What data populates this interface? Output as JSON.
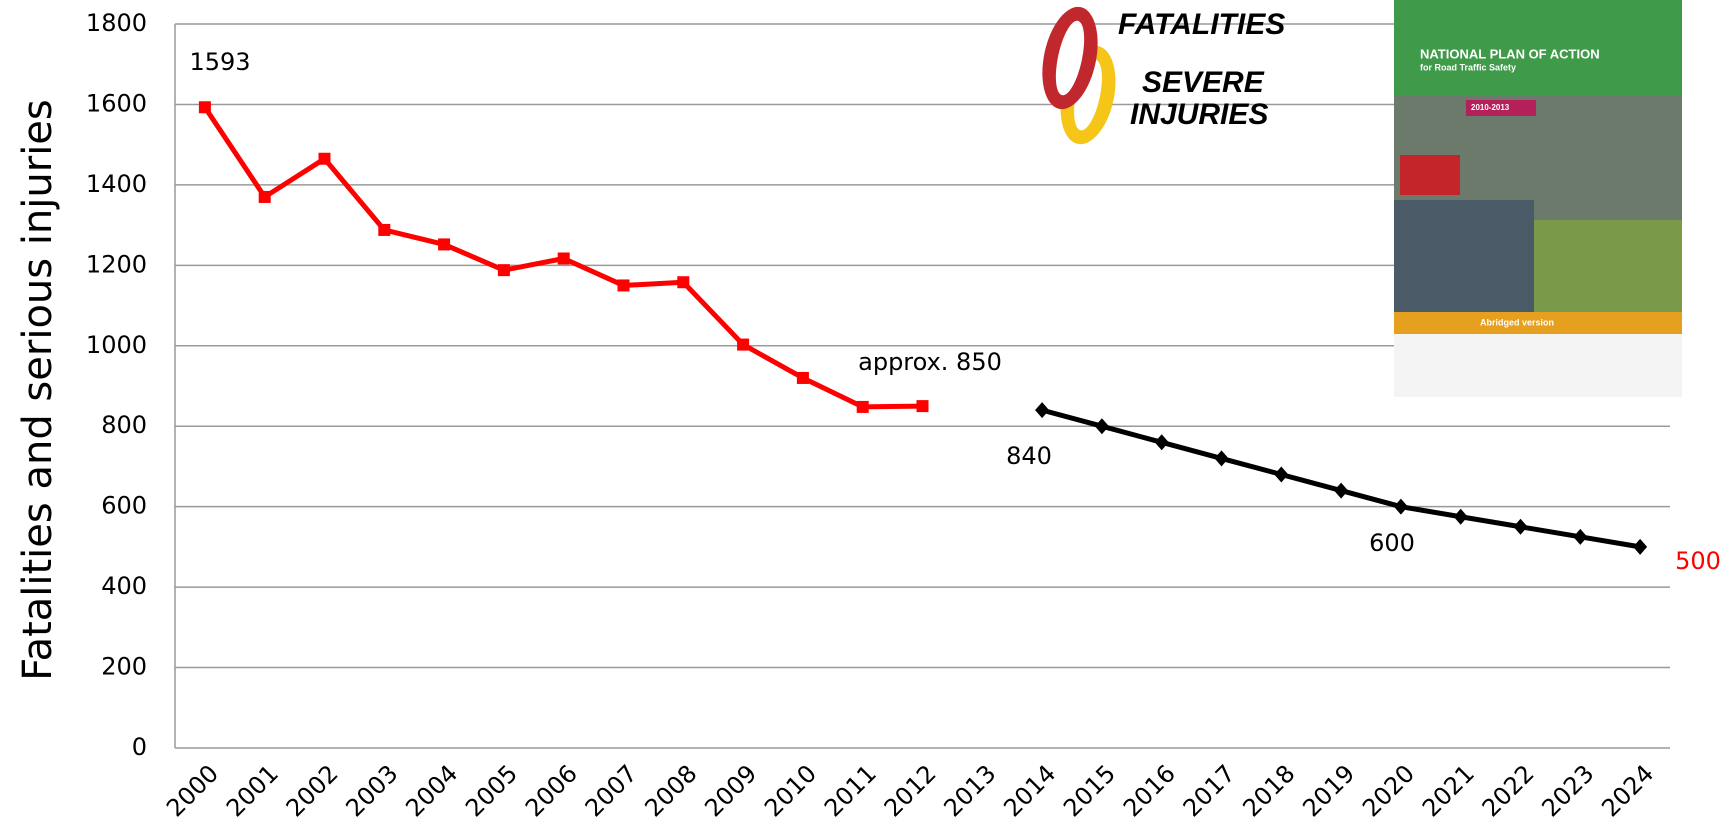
{
  "chart_data": {
    "type": "line",
    "y_label": "Fatalities and serious injuries",
    "categories": [
      "2000",
      "2001",
      "2002",
      "2003",
      "2004",
      "2005",
      "2006",
      "2007",
      "2008",
      "2009",
      "2010",
      "2011",
      "2012",
      "2013",
      "2014",
      "2015",
      "2016",
      "2017",
      "2018",
      "2019",
      "2020",
      "2021",
      "2022",
      "2023",
      "2024"
    ],
    "series": [
      {
        "color": "#ff0000",
        "marker": "square",
        "values": [
          1593,
          1370,
          1465,
          1288,
          1252,
          1188,
          1217,
          1150,
          1158,
          1003,
          920,
          848,
          850,
          null,
          null,
          null,
          null,
          null,
          null,
          null,
          null,
          null,
          null,
          null,
          null
        ]
      },
      {
        "color": "#000000",
        "marker": "diamond",
        "values": [
          null,
          null,
          null,
          null,
          null,
          null,
          null,
          null,
          null,
          null,
          null,
          null,
          null,
          null,
          840,
          800,
          760,
          720,
          680,
          640,
          600,
          575,
          550,
          525,
          500
        ]
      }
    ],
    "ylim": [
      0,
      1800
    ],
    "yticks": [
      0,
      200,
      400,
      600,
      800,
      1000,
      1200,
      1400,
      1600,
      1800
    ],
    "grid": true,
    "annotations": [
      {
        "text": "1593",
        "color": "#000000"
      },
      {
        "text": "approx. 850",
        "color": "#000000"
      },
      {
        "text": "840",
        "color": "#000000"
      },
      {
        "text": "600",
        "color": "#000000"
      },
      {
        "text": "500",
        "color": "#ff0000"
      }
    ]
  },
  "logo": {
    "line1": "FATALITIES",
    "line2": "SEVERE",
    "line3": "INJURIES"
  },
  "brochure": {
    "title": "NATIONAL PLAN OF ACTION",
    "subtitle": "for Road Traffic Safety",
    "period": "2010-2013",
    "edition": "Abridged version"
  }
}
